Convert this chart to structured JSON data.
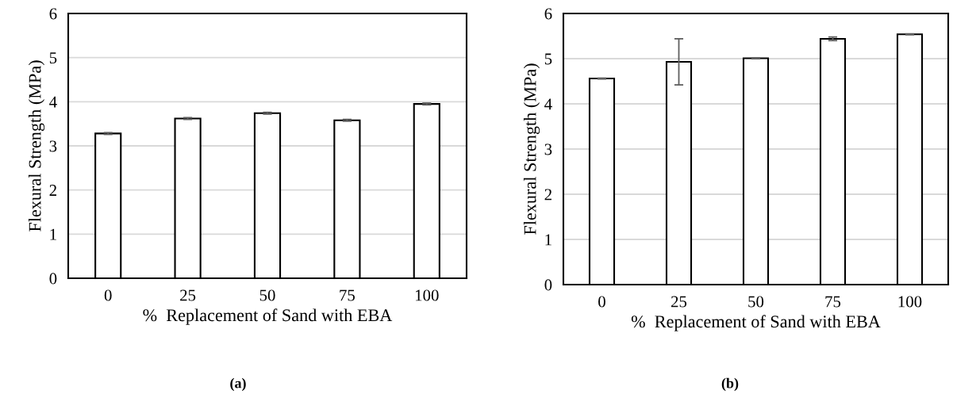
{
  "chart_data": [
    {
      "type": "bar",
      "categories": [
        "0",
        "25",
        "50",
        "75",
        "100"
      ],
      "values": [
        3.28,
        3.62,
        3.74,
        3.58,
        3.95
      ],
      "errors": [
        0.02,
        0.02,
        0.02,
        0.02,
        0.02
      ],
      "color": "#ffffff",
      "ylabel": "Flexural Strength (MPa)",
      "xlabel": "%  Replacement of Sand with EBA",
      "ylim": [
        0,
        6
      ],
      "yticks": [
        0,
        1,
        2,
        3,
        4,
        5,
        6
      ],
      "grid": "y",
      "annotations": [
        "(a)"
      ]
    },
    {
      "type": "bar",
      "categories": [
        "0",
        "25",
        "50",
        "75",
        "100"
      ],
      "values": [
        4.56,
        4.93,
        5.01,
        5.44,
        5.54
      ],
      "errors": [
        0.01,
        0.51,
        0.01,
        0.04,
        0.01
      ],
      "color": "#ffffff",
      "ylabel": "Flexural Strength (MPa)",
      "xlabel": "%  Replacement of Sand with EBA",
      "ylim": [
        0,
        6
      ],
      "yticks": [
        0,
        1,
        2,
        3,
        4,
        5,
        6
      ],
      "grid": "y",
      "annotations": [
        "(b)"
      ]
    }
  ]
}
